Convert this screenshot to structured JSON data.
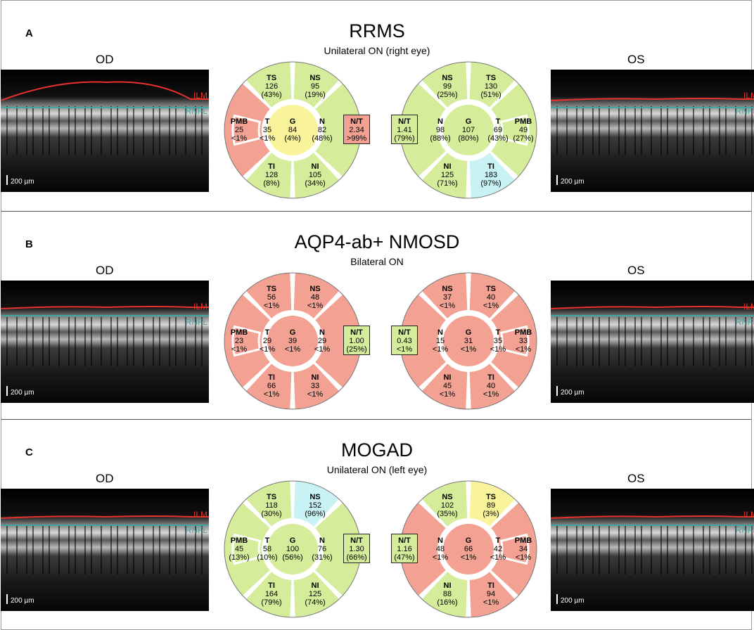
{
  "scale_label": "200 µm",
  "layer_labels": {
    "ilm": "ILM",
    "rnfl": "RNFL"
  },
  "colors": {
    "red": "#f2a193",
    "green": "#d5ec9b",
    "yellow": "#f9f39b",
    "blue": "#c9f2f5",
    "ilm": "#e8322c",
    "rnfl": "#3fa7a0"
  },
  "panels": [
    {
      "letter": "A",
      "title": "RRMS",
      "subtitle": "Unilateral ON (right eye)",
      "od_label": "OD",
      "os_label": "OS",
      "od": {
        "TS": {
          "v": "126",
          "p": "(43%)",
          "c": "green"
        },
        "NS": {
          "v": "95",
          "p": "(19%)",
          "c": "green"
        },
        "T": {
          "v": "35",
          "p": "<1%",
          "c": "red"
        },
        "PMB": {
          "v": "25",
          "p": "<1%",
          "c": "red"
        },
        "G": {
          "v": "84",
          "p": "(4%)",
          "c": "yellow"
        },
        "N": {
          "v": "82",
          "p": "(48%)",
          "c": "green"
        },
        "TI": {
          "v": "128",
          "p": "(8%)",
          "c": "green"
        },
        "NI": {
          "v": "105",
          "p": "(34%)",
          "c": "green"
        },
        "NT": {
          "v": "2.34",
          "p": ">99%",
          "c": "red"
        }
      },
      "os": {
        "NS": {
          "v": "99",
          "p": "(25%)",
          "c": "green"
        },
        "TS": {
          "v": "130",
          "p": "(51%)",
          "c": "green"
        },
        "N": {
          "v": "98",
          "p": "(88%)",
          "c": "green"
        },
        "G": {
          "v": "107",
          "p": "(80%)",
          "c": "green"
        },
        "T": {
          "v": "69",
          "p": "(43%)",
          "c": "green"
        },
        "PMB": {
          "v": "49",
          "p": "(27%)",
          "c": "green"
        },
        "NI": {
          "v": "125",
          "p": "(71%)",
          "c": "green"
        },
        "TI": {
          "v": "183",
          "p": "(97%)",
          "c": "blue"
        },
        "NT": {
          "v": "1.41",
          "p": "(79%)",
          "c": "green"
        }
      }
    },
    {
      "letter": "B",
      "title": "AQP4-ab+ NMOSD",
      "subtitle": "Bilateral ON",
      "od_label": "OD",
      "os_label": "OS",
      "od": {
        "TS": {
          "v": "56",
          "p": "<1%",
          "c": "red"
        },
        "NS": {
          "v": "48",
          "p": "<1%",
          "c": "red"
        },
        "T": {
          "v": "29",
          "p": "<1%",
          "c": "red"
        },
        "PMB": {
          "v": "23",
          "p": "<1%",
          "c": "red"
        },
        "G": {
          "v": "39",
          "p": "<1%",
          "c": "red"
        },
        "N": {
          "v": "29",
          "p": "<1%",
          "c": "red"
        },
        "TI": {
          "v": "66",
          "p": "<1%",
          "c": "red"
        },
        "NI": {
          "v": "33",
          "p": "<1%",
          "c": "red"
        },
        "NT": {
          "v": "1.00",
          "p": "(25%)",
          "c": "green"
        }
      },
      "os": {
        "NS": {
          "v": "37",
          "p": "<1%",
          "c": "red"
        },
        "TS": {
          "v": "40",
          "p": "<1%",
          "c": "red"
        },
        "N": {
          "v": "15",
          "p": "<1%",
          "c": "red"
        },
        "G": {
          "v": "31",
          "p": "<1%",
          "c": "red"
        },
        "T": {
          "v": "35",
          "p": "<1%",
          "c": "red"
        },
        "PMB": {
          "v": "33",
          "p": "<1%",
          "c": "red"
        },
        "NI": {
          "v": "45",
          "p": "<1%",
          "c": "red"
        },
        "TI": {
          "v": "40",
          "p": "<1%",
          "c": "red"
        },
        "NT": {
          "v": "0.43",
          "p": "<1%",
          "c": "green"
        }
      }
    },
    {
      "letter": "C",
      "title": "MOGAD",
      "subtitle": "Unilateral ON (left eye)",
      "od_label": "OD",
      "os_label": "OS",
      "od": {
        "TS": {
          "v": "118",
          "p": "(30%)",
          "c": "green"
        },
        "NS": {
          "v": "152",
          "p": "(96%)",
          "c": "blue"
        },
        "T": {
          "v": "58",
          "p": "(10%)",
          "c": "green"
        },
        "PMB": {
          "v": "45",
          "p": "(13%)",
          "c": "green"
        },
        "G": {
          "v": "100",
          "p": "(56%)",
          "c": "green"
        },
        "N": {
          "v": "76",
          "p": "(31%)",
          "c": "green"
        },
        "TI": {
          "v": "164",
          "p": "(79%)",
          "c": "green"
        },
        "NI": {
          "v": "125",
          "p": "(74%)",
          "c": "green"
        },
        "NT": {
          "v": "1.30",
          "p": "(66%)",
          "c": "green"
        }
      },
      "os": {
        "NS": {
          "v": "102",
          "p": "(35%)",
          "c": "green"
        },
        "TS": {
          "v": "89",
          "p": "(3%)",
          "c": "yellow"
        },
        "N": {
          "v": "48",
          "p": "<1%",
          "c": "red"
        },
        "G": {
          "v": "66",
          "p": "<1%",
          "c": "red"
        },
        "T": {
          "v": "42",
          "p": "<1%",
          "c": "red"
        },
        "PMB": {
          "v": "34",
          "p": "<1%",
          "c": "red"
        },
        "NI": {
          "v": "88",
          "p": "(16%)",
          "c": "green"
        },
        "TI": {
          "v": "94",
          "p": "<1%",
          "c": "red"
        },
        "NT": {
          "v": "1.16",
          "p": "(47%)",
          "c": "green"
        }
      }
    }
  ]
}
